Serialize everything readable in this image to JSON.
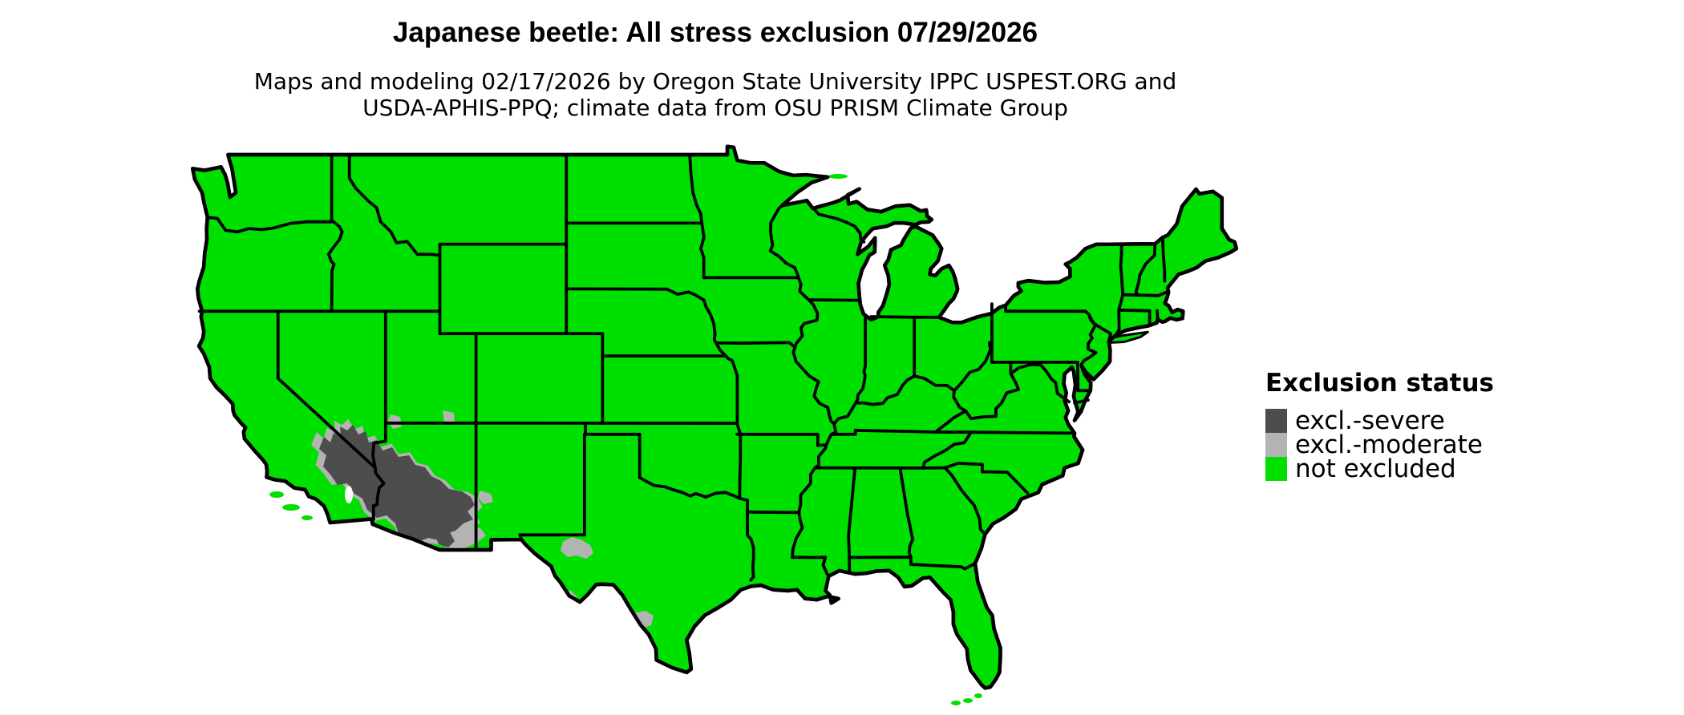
{
  "title": "Japanese beetle: All stress exclusion 07/29/2026",
  "subtitle": {
    "line1": "Maps and modeling 02/17/2026 by Oregon State University IPPC USPEST.ORG and",
    "line2": "USDA-APHIS-PPQ; climate data from OSU PRISM Climate Group"
  },
  "legend": {
    "title": "Exclusion status",
    "items": [
      {
        "label": "excl.-severe",
        "color": "#4d4d4d"
      },
      {
        "label": "excl.-moderate",
        "color": "#b3b3b3"
      },
      {
        "label": "not excluded",
        "color": "#00e000"
      }
    ]
  },
  "map": {
    "region": "Continental United States",
    "land_color": "#00e000",
    "border_color": "#000000",
    "water_color": "#ffffff"
  }
}
